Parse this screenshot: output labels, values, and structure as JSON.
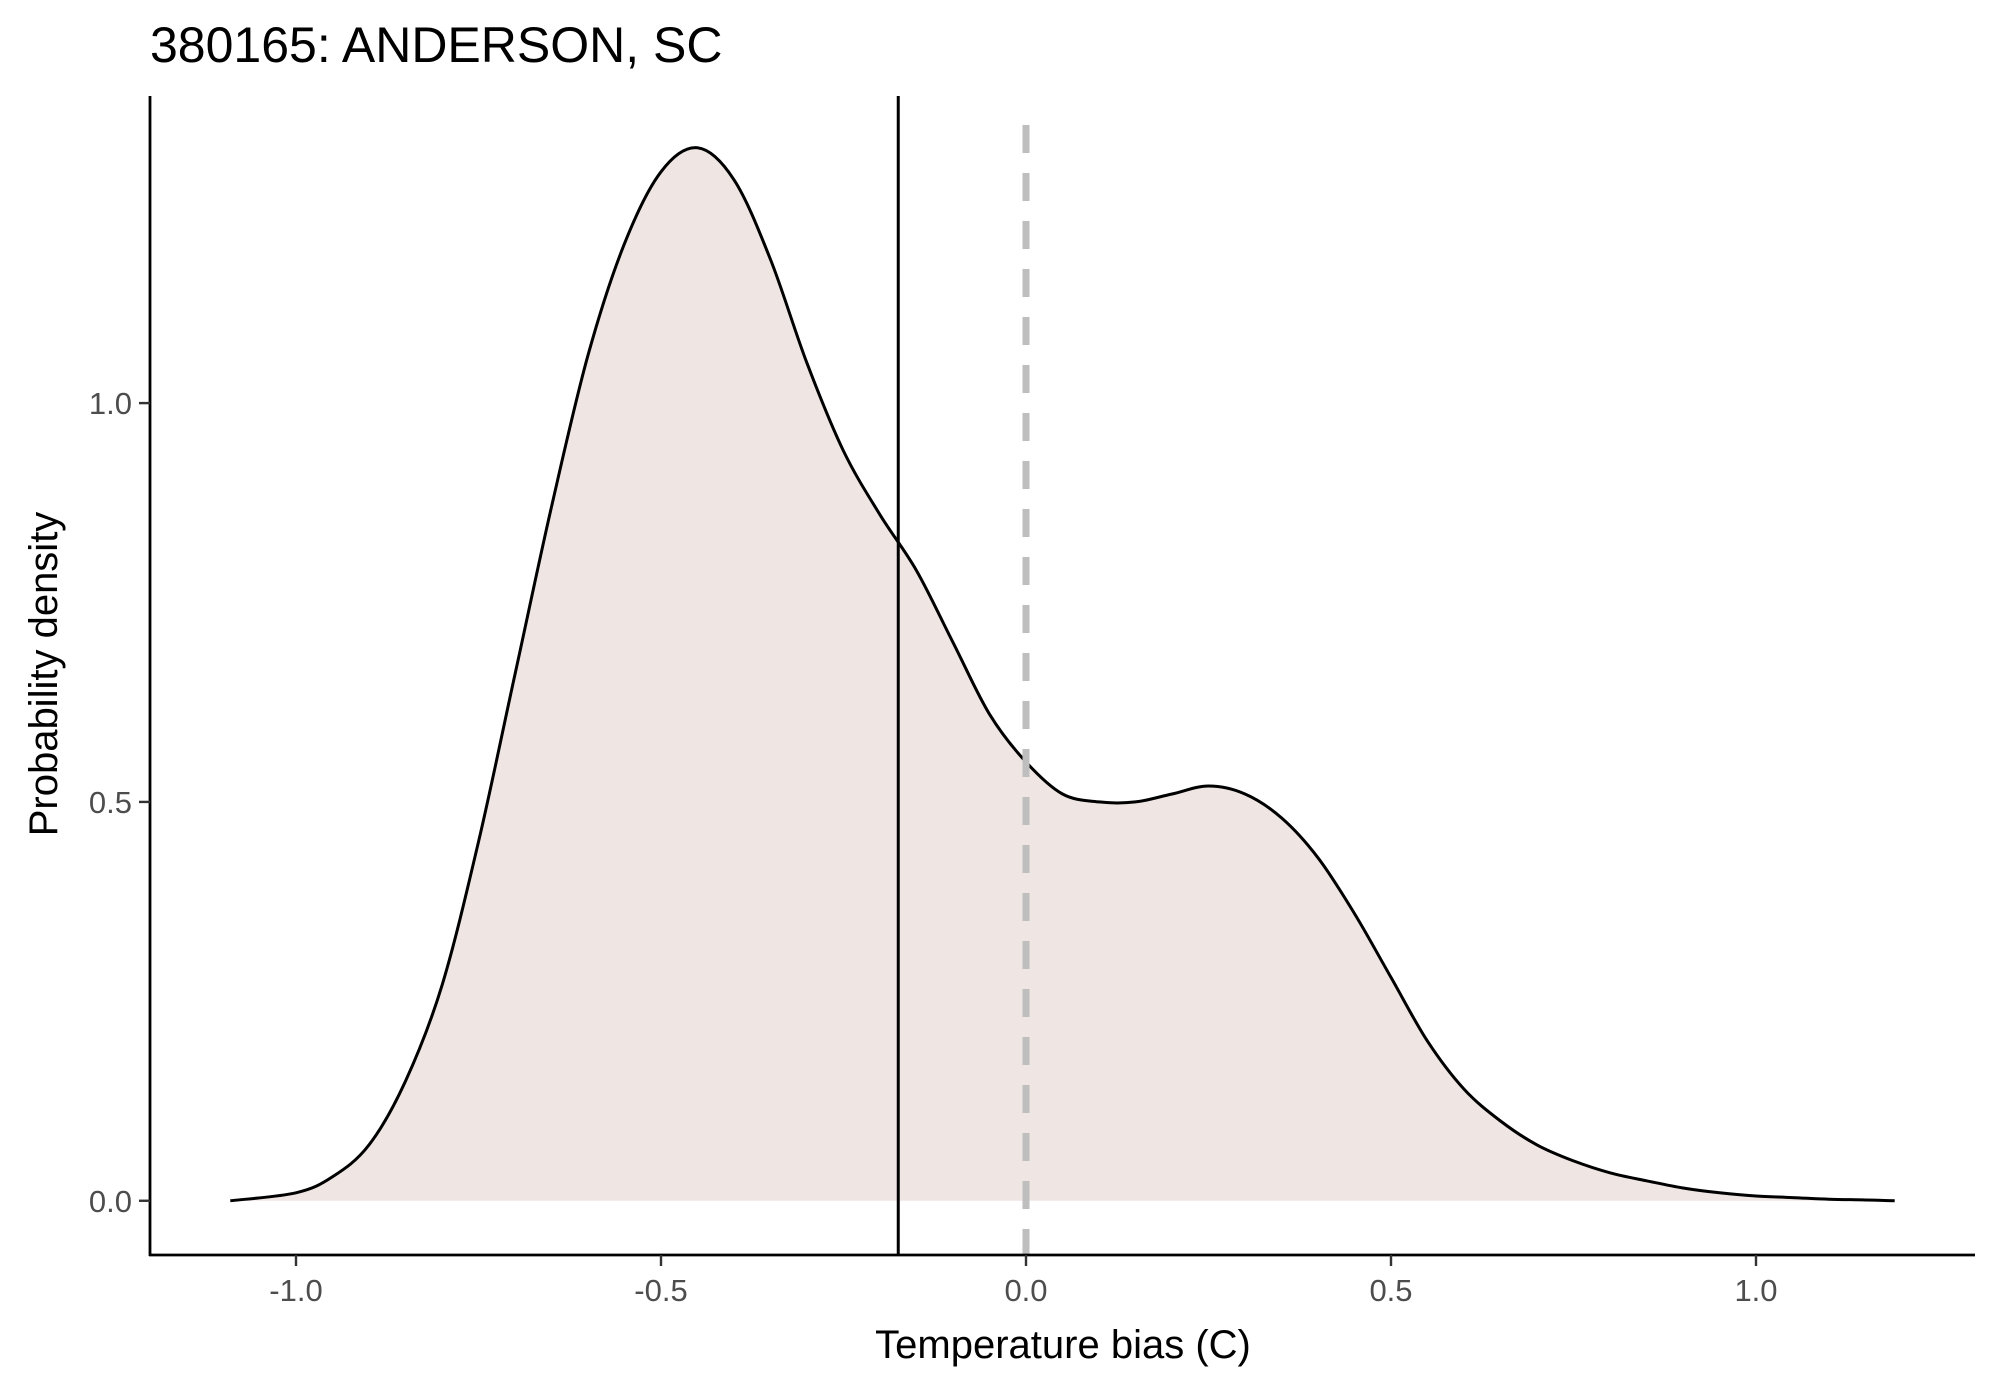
{
  "chart_data": {
    "type": "area",
    "title": "380165: ANDERSON, SC",
    "xlabel": "Temperature bias (C)",
    "ylabel": "Probability density",
    "xlim": [
      -1.2,
      1.3
    ],
    "ylim": [
      -0.068,
      1.385
    ],
    "x_ticks": [
      -1.0,
      -0.5,
      0.0,
      0.5,
      1.0
    ],
    "x_tick_labels": [
      "-1.0",
      "-0.5",
      "0.0",
      "0.5",
      "1.0"
    ],
    "y_ticks": [
      0.0,
      0.5,
      1.0
    ],
    "y_tick_labels": [
      "0.0",
      "0.5",
      "1.0"
    ],
    "grid": false,
    "legend": "none",
    "series": [
      {
        "x": [
          -1.09,
          -1.0,
          -0.95,
          -0.9,
          -0.85,
          -0.8,
          -0.75,
          -0.7,
          -0.65,
          -0.6,
          -0.55,
          -0.5,
          -0.45,
          -0.4,
          -0.35,
          -0.3,
          -0.25,
          -0.2,
          -0.15,
          -0.1,
          -0.05,
          0.0,
          0.05,
          0.1,
          0.15,
          0.2,
          0.25,
          0.3,
          0.35,
          0.4,
          0.45,
          0.5,
          0.55,
          0.6,
          0.65,
          0.7,
          0.75,
          0.8,
          0.85,
          0.9,
          0.95,
          1.0,
          1.05,
          1.1,
          1.15,
          1.19
        ],
        "y": [
          0.0,
          0.01,
          0.03,
          0.07,
          0.15,
          0.27,
          0.45,
          0.66,
          0.87,
          1.06,
          1.2,
          1.29,
          1.32,
          1.28,
          1.18,
          1.05,
          0.94,
          0.86,
          0.79,
          0.7,
          0.61,
          0.55,
          0.51,
          0.5,
          0.5,
          0.51,
          0.52,
          0.51,
          0.48,
          0.43,
          0.36,
          0.28,
          0.2,
          0.14,
          0.1,
          0.07,
          0.05,
          0.035,
          0.025,
          0.016,
          0.01,
          0.006,
          0.004,
          0.002,
          0.001,
          0.0
        ]
      }
    ],
    "reference_lines": [
      {
        "x": -0.175,
        "style": "solid",
        "color": "#000000"
      },
      {
        "x": 0.0,
        "style": "dashed",
        "color": "#bebebe"
      }
    ],
    "colors": {
      "fill": "#efe6e3",
      "line": "#000000"
    }
  }
}
